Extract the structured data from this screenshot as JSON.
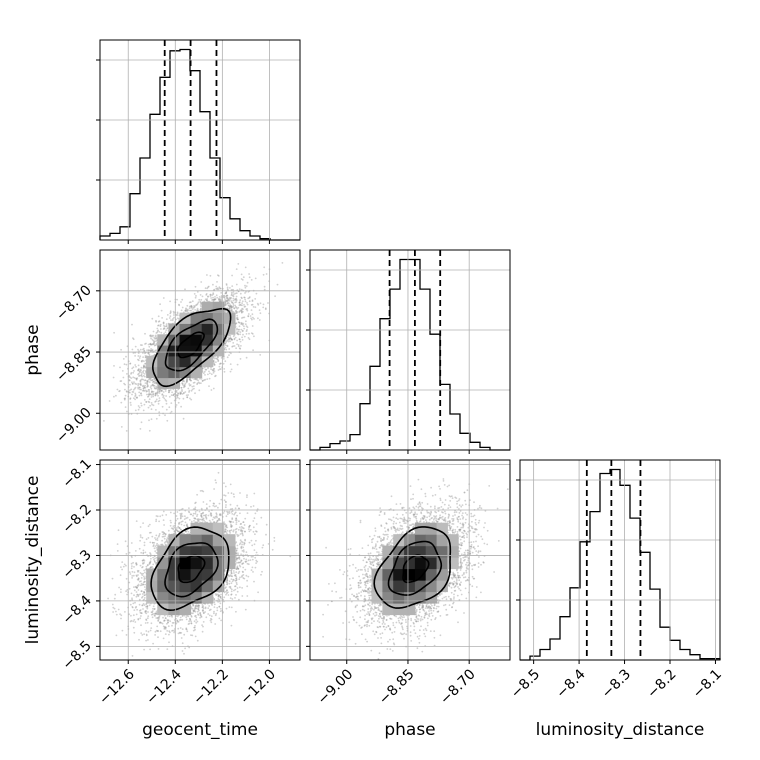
{
  "chart_data": {
    "type": "corner",
    "title": "",
    "parameters": [
      {
        "name": "geocent_time",
        "label": "geocent_time",
        "range": [
          -12.72,
          -11.87
        ],
        "ticks": [
          -12.6,
          -12.4,
          -12.2,
          -12.0
        ],
        "tick_labels": [
          "−12.6",
          "−12.4",
          "−12.2",
          "−12.0"
        ],
        "quantiles": [
          -12.445,
          -12.335,
          -12.225
        ]
      },
      {
        "name": "phase",
        "label": "phase",
        "range": [
          -9.09,
          -8.6
        ],
        "ticks": [
          -9.0,
          -8.85,
          -8.7
        ],
        "tick_labels": [
          "−9.00",
          "−8.85",
          "−8.70"
        ],
        "quantiles": [
          -8.895,
          -8.833,
          -8.771
        ]
      },
      {
        "name": "luminosity_distance",
        "label": "luminosity_distance",
        "range": [
          -8.53,
          -8.09
        ],
        "ticks": [
          -8.5,
          -8.4,
          -8.3,
          -8.2,
          -8.1
        ],
        "tick_labels": [
          "−8.5",
          "−8.4",
          "−8.3",
          "−8.2",
          "−8.1"
        ],
        "quantiles": [
          -8.383,
          -8.329,
          -8.265
        ]
      }
    ],
    "histograms": [
      {
        "parameter": "geocent_time",
        "bin_edges": [
          -12.72,
          -12.6775,
          -12.635,
          -12.5925,
          -12.55,
          -12.5075,
          -12.465,
          -12.4225,
          -12.38,
          -12.3375,
          -12.295,
          -12.2525,
          -12.21,
          -12.1675,
          -12.125,
          -12.0825,
          -12.04,
          -11.9975,
          -11.955,
          -11.9125,
          -11.87
        ],
        "counts": [
          3,
          5,
          10,
          35,
          62,
          95,
          123,
          143,
          144,
          128,
          97,
          62,
          32,
          16,
          7,
          3,
          1,
          0,
          0,
          0
        ]
      },
      {
        "parameter": "phase",
        "bin_edges": [
          -9.09,
          -9.0655,
          -9.041,
          -9.0165,
          -8.992,
          -8.9675,
          -8.943,
          -8.9185,
          -8.894,
          -8.8695,
          -8.845,
          -8.8205,
          -8.796,
          -8.7715,
          -8.747,
          -8.7225,
          -8.698,
          -8.6735,
          -8.649,
          -8.6245,
          -8.6
        ],
        "counts": [
          0,
          2,
          5,
          7,
          12,
          36,
          65,
          102,
          125,
          148,
          148,
          125,
          90,
          51,
          28,
          13,
          6,
          2,
          0,
          0
        ]
      },
      {
        "parameter": "luminosity_distance",
        "bin_edges": [
          -8.53,
          -8.508,
          -8.486,
          -8.464,
          -8.442,
          -8.42,
          -8.398,
          -8.376,
          -8.354,
          -8.332,
          -8.31,
          -8.288,
          -8.266,
          -8.244,
          -8.222,
          -8.2,
          -8.178,
          -8.156,
          -8.134,
          -8.112,
          -8.09
        ],
        "counts": [
          0,
          3,
          8,
          16,
          33,
          55,
          90,
          113,
          142,
          145,
          133,
          108,
          82,
          54,
          25,
          15,
          8,
          4,
          1,
          1
        ]
      }
    ],
    "panels": [
      {
        "x": "geocent_time",
        "y": "phase",
        "center": [
          -12.335,
          -8.833
        ],
        "sigma": [
          0.11,
          0.062
        ],
        "correlation": 0.65
      },
      {
        "x": "geocent_time",
        "y": "luminosity_distance",
        "center": [
          -12.335,
          -8.329
        ],
        "sigma": [
          0.11,
          0.059
        ],
        "correlation": 0.35
      },
      {
        "x": "phase",
        "y": "luminosity_distance",
        "center": [
          -8.833,
          -8.329
        ],
        "sigma": [
          0.062,
          0.059
        ],
        "correlation": 0.35
      }
    ],
    "contour_levels": [
      0.5,
      1.0,
      1.5
    ],
    "grid": true
  }
}
